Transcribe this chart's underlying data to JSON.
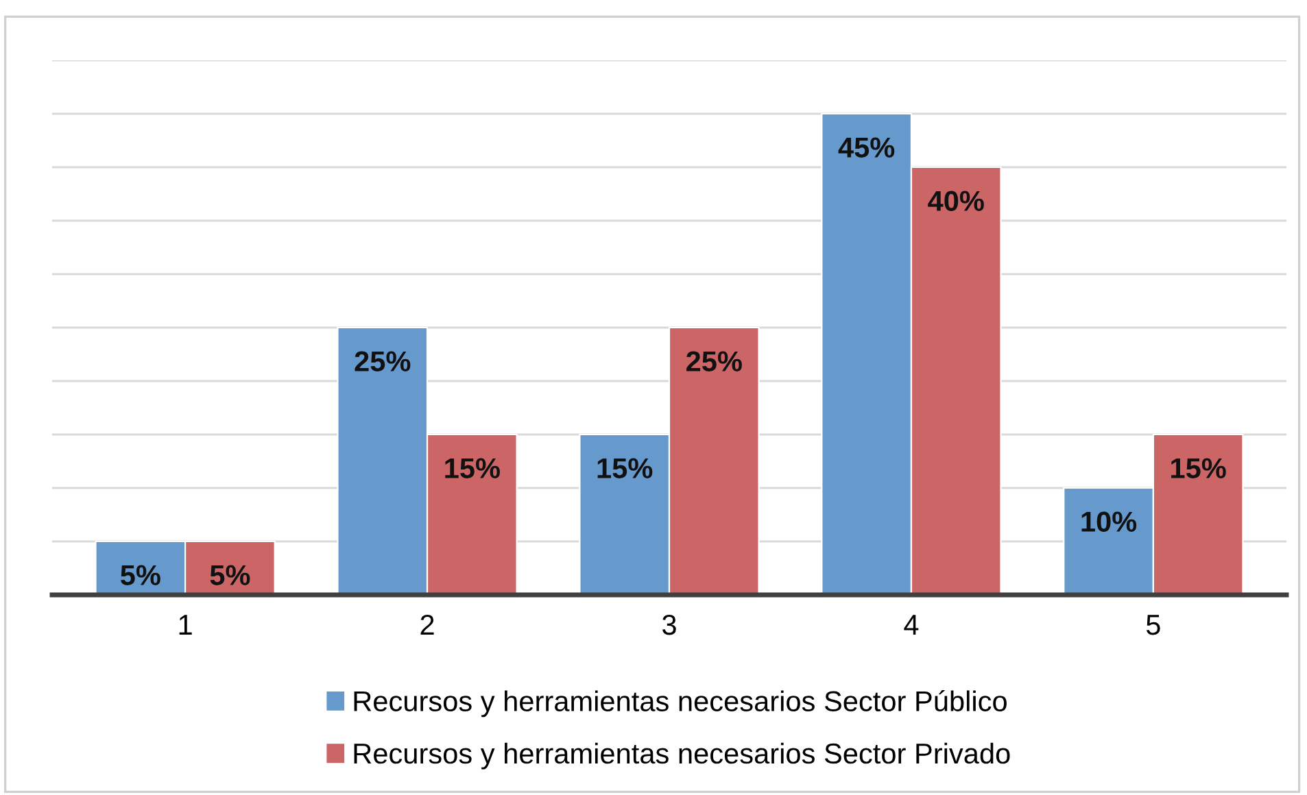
{
  "chart_data": {
    "type": "bar",
    "categories": [
      "1",
      "2",
      "3",
      "4",
      "5"
    ],
    "series": [
      {
        "name": "Recursos y herramientas necesarios Sector Público",
        "color": "#6699cc",
        "values": [
          5,
          25,
          15,
          45,
          10
        ],
        "value_labels": [
          "5%",
          "25%",
          "15%",
          "45%",
          "10%"
        ]
      },
      {
        "name": "Recursos y herramientas necesarios Sector Privado",
        "color": "#cc6666",
        "values": [
          5,
          15,
          25,
          40,
          15
        ],
        "value_labels": [
          "5%",
          "15%",
          "25%",
          "40%",
          "15%"
        ]
      }
    ],
    "ylim": [
      0,
      50
    ],
    "yticks": [
      {
        "value": 0,
        "label": null
      },
      {
        "value": 5,
        "label": null
      },
      {
        "value": 10,
        "label": null
      },
      {
        "value": 15,
        "label": null
      },
      {
        "value": 20,
        "label": null
      },
      {
        "value": 25,
        "label": null
      },
      {
        "value": 30,
        "label": null
      },
      {
        "value": 35,
        "label": null
      },
      {
        "value": 40,
        "label": null
      },
      {
        "value": 45,
        "label": null
      },
      {
        "value": 50,
        "label": null
      }
    ],
    "tick_labels": "x",
    "grid": "y",
    "legend": "bottom"
  }
}
